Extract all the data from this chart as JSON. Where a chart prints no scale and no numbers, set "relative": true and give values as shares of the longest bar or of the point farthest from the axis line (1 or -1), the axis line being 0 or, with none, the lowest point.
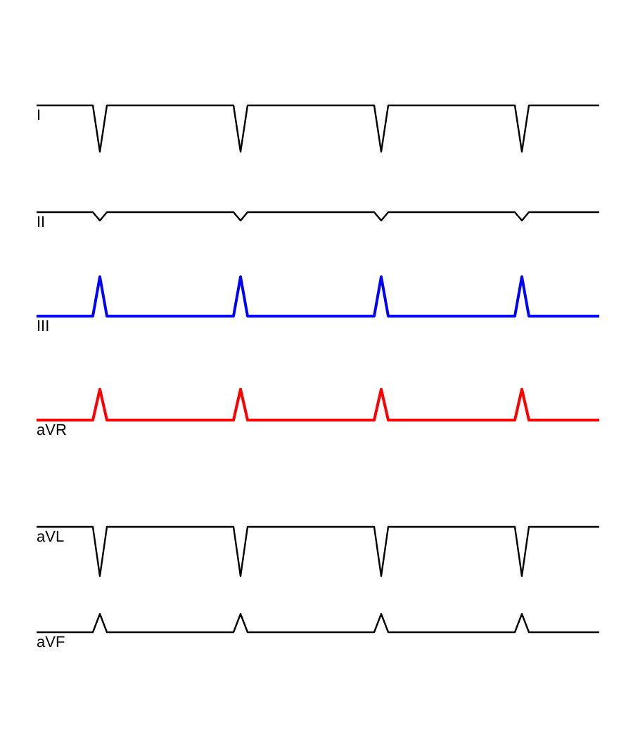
{
  "chart_data": [
    {
      "type": "line",
      "relative": true,
      "categories": [
        null,
        null,
        null,
        null,
        null,
        null,
        null,
        null,
        null,
        null,
        null,
        null,
        null,
        null,
        null,
        null,
        null,
        null,
        null,
        null,
        null,
        null,
        null,
        null,
        null,
        null,
        null,
        null,
        null,
        null,
        null,
        null,
        null,
        null,
        null,
        null,
        null,
        null,
        null,
        null,
        null,
        null,
        null,
        null,
        null,
        null,
        null,
        null,
        null,
        null,
        null,
        null,
        null,
        null,
        null,
        null,
        null,
        null,
        null,
        null,
        null,
        null,
        null,
        null,
        null,
        null,
        null,
        null,
        null,
        null,
        null,
        null,
        null,
        null,
        null,
        null,
        null,
        null,
        null,
        null,
        null
      ],
      "series": [
        {
          "name": "I",
          "color": "#000000",
          "values": [
            1,
            1,
            1,
            1,
            1,
            1,
            1,
            1,
            1,
            0,
            1,
            1,
            1,
            1,
            1,
            1,
            1,
            1,
            1,
            1,
            1,
            1,
            1,
            1,
            1,
            1,
            1,
            1,
            1,
            0,
            1,
            1,
            1,
            1,
            1,
            1,
            1,
            1,
            1,
            1,
            1,
            1,
            1,
            1,
            1,
            1,
            1,
            1,
            1,
            0,
            1,
            1,
            1,
            1,
            1,
            1,
            1,
            1,
            1,
            1,
            1,
            1,
            1,
            1,
            1,
            1,
            1,
            1,
            1,
            0,
            1,
            1,
            1,
            1,
            1,
            1,
            1,
            1,
            1,
            1,
            1
          ]
        }
      ]
    },
    {
      "type": "line",
      "relative": true,
      "categories": [
        null,
        null,
        null,
        null,
        null,
        null,
        null,
        null,
        null,
        null,
        null,
        null,
        null,
        null,
        null,
        null,
        null,
        null,
        null,
        null,
        null,
        null,
        null,
        null,
        null,
        null,
        null,
        null,
        null,
        null,
        null,
        null,
        null,
        null,
        null,
        null,
        null,
        null,
        null,
        null,
        null,
        null,
        null,
        null,
        null,
        null,
        null,
        null,
        null,
        null,
        null,
        null,
        null,
        null,
        null,
        null,
        null,
        null,
        null,
        null,
        null,
        null,
        null,
        null,
        null,
        null,
        null,
        null,
        null,
        null,
        null,
        null,
        null,
        null,
        null,
        null,
        null,
        null,
        null,
        null,
        null
      ],
      "series": [
        {
          "name": "II",
          "color": "#000000",
          "values": [
            1,
            1,
            1,
            1,
            1,
            1,
            1,
            1,
            1,
            0,
            1,
            1,
            1,
            1,
            1,
            1,
            1,
            1,
            1,
            1,
            1,
            1,
            1,
            1,
            1,
            1,
            1,
            1,
            1,
            0,
            1,
            1,
            1,
            1,
            1,
            1,
            1,
            1,
            1,
            1,
            1,
            1,
            1,
            1,
            1,
            1,
            1,
            1,
            1,
            0,
            1,
            1,
            1,
            1,
            1,
            1,
            1,
            1,
            1,
            1,
            1,
            1,
            1,
            1,
            1,
            1,
            1,
            1,
            1,
            0,
            1,
            1,
            1,
            1,
            1,
            1,
            1,
            1,
            1,
            1,
            1
          ]
        }
      ]
    },
    {
      "type": "line",
      "relative": true,
      "categories": [
        null,
        null,
        null,
        null,
        null,
        null,
        null,
        null,
        null,
        null,
        null,
        null,
        null,
        null,
        null,
        null,
        null,
        null,
        null,
        null,
        null,
        null,
        null,
        null,
        null,
        null,
        null,
        null,
        null,
        null,
        null,
        null,
        null,
        null,
        null,
        null,
        null,
        null,
        null,
        null,
        null,
        null,
        null,
        null,
        null,
        null,
        null,
        null,
        null,
        null,
        null,
        null,
        null,
        null,
        null,
        null,
        null,
        null,
        null,
        null,
        null,
        null,
        null,
        null,
        null,
        null,
        null,
        null,
        null,
        null,
        null,
        null,
        null,
        null,
        null,
        null,
        null,
        null,
        null,
        null,
        null
      ],
      "series": [
        {
          "name": "III",
          "color": "#0000ff",
          "values": [
            0,
            0,
            0,
            0,
            0,
            0,
            0,
            0,
            0,
            1,
            0,
            0,
            0,
            0,
            0,
            0,
            0,
            0,
            0,
            0,
            0,
            0,
            0,
            0,
            0,
            0,
            0,
            0,
            0,
            1,
            0,
            0,
            0,
            0,
            0,
            0,
            0,
            0,
            0,
            0,
            0,
            0,
            0,
            0,
            0,
            0,
            0,
            0,
            0,
            1,
            0,
            0,
            0,
            0,
            0,
            0,
            0,
            0,
            0,
            0,
            0,
            0,
            0,
            0,
            0,
            0,
            0,
            0,
            0,
            1,
            0,
            0,
            0,
            0,
            0,
            0,
            0,
            0,
            0,
            0,
            0
          ]
        }
      ]
    },
    {
      "type": "line",
      "relative": true,
      "categories": [
        null,
        null,
        null,
        null,
        null,
        null,
        null,
        null,
        null,
        null,
        null,
        null,
        null,
        null,
        null,
        null,
        null,
        null,
        null,
        null,
        null,
        null,
        null,
        null,
        null,
        null,
        null,
        null,
        null,
        null,
        null,
        null,
        null,
        null,
        null,
        null,
        null,
        null,
        null,
        null,
        null,
        null,
        null,
        null,
        null,
        null,
        null,
        null,
        null,
        null,
        null,
        null,
        null,
        null,
        null,
        null,
        null,
        null,
        null,
        null,
        null,
        null,
        null,
        null,
        null,
        null,
        null,
        null,
        null,
        null,
        null,
        null,
        null,
        null,
        null,
        null,
        null,
        null,
        null,
        null,
        null
      ],
      "series": [
        {
          "name": "aVR",
          "color": "#ff0000",
          "values": [
            0,
            0,
            0,
            0,
            0,
            0,
            0,
            0,
            0,
            1,
            0,
            0,
            0,
            0,
            0,
            0,
            0,
            0,
            0,
            0,
            0,
            0,
            0,
            0,
            0,
            0,
            0,
            0,
            0,
            1,
            0,
            0,
            0,
            0,
            0,
            0,
            0,
            0,
            0,
            0,
            0,
            0,
            0,
            0,
            0,
            0,
            0,
            0,
            0,
            1,
            0,
            0,
            0,
            0,
            0,
            0,
            0,
            0,
            0,
            0,
            0,
            0,
            0,
            0,
            0,
            0,
            0,
            0,
            0,
            1,
            0,
            0,
            0,
            0,
            0,
            0,
            0,
            0,
            0,
            0,
            0
          ]
        }
      ]
    },
    {
      "type": "line",
      "relative": true,
      "categories": [
        null,
        null,
        null,
        null,
        null,
        null,
        null,
        null,
        null,
        null,
        null,
        null,
        null,
        null,
        null,
        null,
        null,
        null,
        null,
        null,
        null,
        null,
        null,
        null,
        null,
        null,
        null,
        null,
        null,
        null,
        null,
        null,
        null,
        null,
        null,
        null,
        null,
        null,
        null,
        null,
        null,
        null,
        null,
        null,
        null,
        null,
        null,
        null,
        null,
        null,
        null,
        null,
        null,
        null,
        null,
        null,
        null,
        null,
        null,
        null,
        null,
        null,
        null,
        null,
        null,
        null,
        null,
        null,
        null,
        null,
        null,
        null,
        null,
        null,
        null,
        null,
        null,
        null,
        null,
        null,
        null
      ],
      "series": [
        {
          "name": "aVL",
          "color": "#000000",
          "values": [
            1,
            1,
            1,
            1,
            1,
            1,
            1,
            1,
            1,
            0,
            1,
            1,
            1,
            1,
            1,
            1,
            1,
            1,
            1,
            1,
            1,
            1,
            1,
            1,
            1,
            1,
            1,
            1,
            1,
            0,
            1,
            1,
            1,
            1,
            1,
            1,
            1,
            1,
            1,
            1,
            1,
            1,
            1,
            1,
            1,
            1,
            1,
            1,
            1,
            0,
            1,
            1,
            1,
            1,
            1,
            1,
            1,
            1,
            1,
            1,
            1,
            1,
            1,
            1,
            1,
            1,
            1,
            1,
            1,
            0,
            1,
            1,
            1,
            1,
            1,
            1,
            1,
            1,
            1,
            1,
            1
          ]
        }
      ]
    },
    {
      "type": "line",
      "relative": true,
      "categories": [
        null,
        null,
        null,
        null,
        null,
        null,
        null,
        null,
        null,
        null,
        null,
        null,
        null,
        null,
        null,
        null,
        null,
        null,
        null,
        null,
        null,
        null,
        null,
        null,
        null,
        null,
        null,
        null,
        null,
        null,
        null,
        null,
        null,
        null,
        null,
        null,
        null,
        null,
        null,
        null,
        null,
        null,
        null,
        null,
        null,
        null,
        null,
        null,
        null,
        null,
        null,
        null,
        null,
        null,
        null,
        null,
        null,
        null,
        null,
        null,
        null,
        null,
        null,
        null,
        null,
        null,
        null,
        null,
        null,
        null,
        null,
        null,
        null,
        null,
        null,
        null,
        null,
        null,
        null,
        null,
        null
      ],
      "series": [
        {
          "name": "aVF",
          "color": "#000000",
          "values": [
            0,
            0,
            0,
            0,
            0,
            0,
            0,
            0,
            0,
            1,
            0,
            0,
            0,
            0,
            0,
            0,
            0,
            0,
            0,
            0,
            0,
            0,
            0,
            0,
            0,
            0,
            0,
            0,
            0,
            1,
            0,
            0,
            0,
            0,
            0,
            0,
            0,
            0,
            0,
            0,
            0,
            0,
            0,
            0,
            0,
            0,
            0,
            0,
            0,
            1,
            0,
            0,
            0,
            0,
            0,
            0,
            0,
            0,
            0,
            0,
            0,
            0,
            0,
            0,
            0,
            0,
            0,
            0,
            0,
            1,
            0,
            0,
            0,
            0,
            0,
            0,
            0,
            0,
            0,
            0,
            0
          ]
        }
      ]
    }
  ]
}
